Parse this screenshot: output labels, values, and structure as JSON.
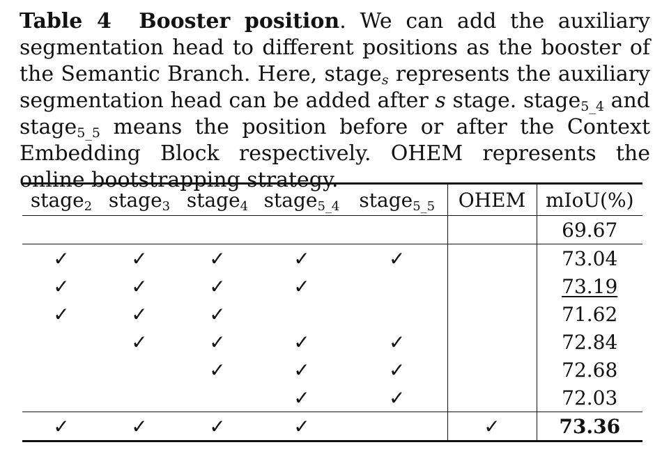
{
  "caption": {
    "label": "Table 4",
    "title": "Booster position",
    "body_1": ". We can add the auxiliary segmentation head to different positions as the booster of the Semantic Branch. Here, stage",
    "sub_s": "s",
    "body_2": " represents the auxiliary segmentation head can be added after ",
    "italic_s": "s",
    "body_3": " stage. stage",
    "sub_5_4": "5_4",
    "body_4": " and stage",
    "sub_5_5": "5_5",
    "body_5": " means the position before or after the Context Embedding Block respectively. OHEM represents the online bootstrapping strategy."
  },
  "table": {
    "headers": [
      {
        "base": "stage",
        "sub": "2"
      },
      {
        "base": "stage",
        "sub": "3"
      },
      {
        "base": "stage",
        "sub": "4"
      },
      {
        "base": "stage",
        "sub": "5_4"
      },
      {
        "base": "stage",
        "sub": "5_5"
      },
      {
        "base": "OHEM",
        "sub": ""
      },
      {
        "base": "mIoU(%)",
        "sub": ""
      }
    ],
    "check_glyph": "✓",
    "rows": [
      {
        "cells": [
          "",
          "",
          "",
          "",
          "",
          "",
          "69.67"
        ]
      },
      {
        "cells": [
          "✓",
          "✓",
          "✓",
          "✓",
          "✓",
          "",
          "73.04"
        ]
      },
      {
        "cells": [
          "✓",
          "✓",
          "✓",
          "✓",
          "",
          "",
          "73.19"
        ]
      },
      {
        "cells": [
          "✓",
          "✓",
          "✓",
          "",
          "",
          "",
          "71.62"
        ]
      },
      {
        "cells": [
          "",
          "✓",
          "✓",
          "✓",
          "✓",
          "",
          "72.84"
        ]
      },
      {
        "cells": [
          "",
          "",
          "✓",
          "✓",
          "✓",
          "",
          "72.68"
        ]
      },
      {
        "cells": [
          "",
          "",
          "",
          "✓",
          "✓",
          "",
          "72.03"
        ]
      },
      {
        "cells": [
          "✓",
          "✓",
          "✓",
          "✓",
          "",
          "✓",
          "73.36"
        ]
      }
    ]
  }
}
